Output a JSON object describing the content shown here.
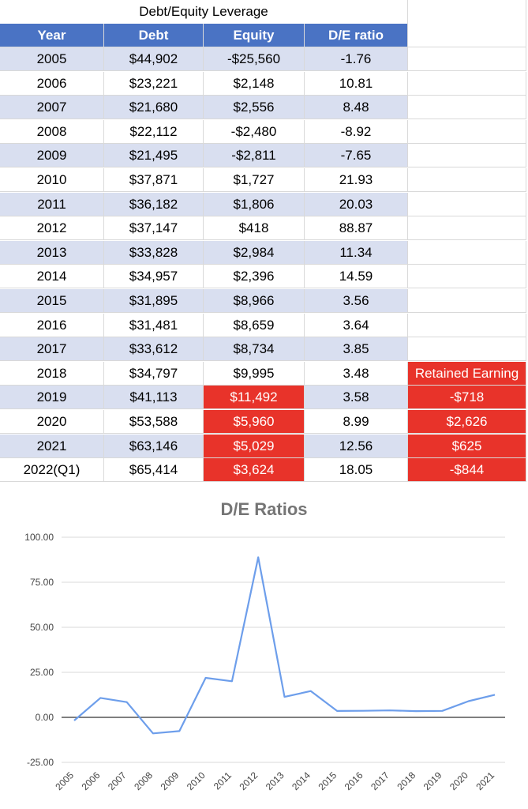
{
  "table": {
    "title": "Debt/Equity Leverage",
    "headers": [
      "Year",
      "Debt",
      "Equity",
      "D/E ratio"
    ],
    "side_header": "Retained Earning",
    "rows": [
      {
        "year": "2005",
        "debt": "$44,902",
        "equity": "-$25,560",
        "ratio": "-1.76",
        "retained": ""
      },
      {
        "year": "2006",
        "debt": "$23,221",
        "equity": "$2,148",
        "ratio": "10.81",
        "retained": ""
      },
      {
        "year": "2007",
        "debt": "$21,680",
        "equity": "$2,556",
        "ratio": "8.48",
        "retained": ""
      },
      {
        "year": "2008",
        "debt": "$22,112",
        "equity": "-$2,480",
        "ratio": "-8.92",
        "retained": ""
      },
      {
        "year": "2009",
        "debt": "$21,495",
        "equity": "-$2,811",
        "ratio": "-7.65",
        "retained": ""
      },
      {
        "year": "2010",
        "debt": "$37,871",
        "equity": "$1,727",
        "ratio": "21.93",
        "retained": ""
      },
      {
        "year": "2011",
        "debt": "$36,182",
        "equity": "$1,806",
        "ratio": "20.03",
        "retained": ""
      },
      {
        "year": "2012",
        "debt": "$37,147",
        "equity": "$418",
        "ratio": "88.87",
        "retained": ""
      },
      {
        "year": "2013",
        "debt": "$33,828",
        "equity": "$2,984",
        "ratio": "11.34",
        "retained": ""
      },
      {
        "year": "2014",
        "debt": "$34,957",
        "equity": "$2,396",
        "ratio": "14.59",
        "retained": ""
      },
      {
        "year": "2015",
        "debt": "$31,895",
        "equity": "$8,966",
        "ratio": "3.56",
        "retained": ""
      },
      {
        "year": "2016",
        "debt": "$31,481",
        "equity": "$8,659",
        "ratio": "3.64",
        "retained": ""
      },
      {
        "year": "2017",
        "debt": "$33,612",
        "equity": "$8,734",
        "ratio": "3.85",
        "retained": ""
      },
      {
        "year": "2018",
        "debt": "$34,797",
        "equity": "$9,995",
        "ratio": "3.48",
        "retained": "Retained Earning"
      },
      {
        "year": "2019",
        "debt": "$41,113",
        "equity": "$11,492",
        "ratio": "3.58",
        "retained": "-$718"
      },
      {
        "year": "2020",
        "debt": "$53,588",
        "equity": "$5,960",
        "ratio": "8.99",
        "retained": "$2,626"
      },
      {
        "year": "2021",
        "debt": "$63,146",
        "equity": "$5,029",
        "ratio": "12.56",
        "retained": "$625"
      },
      {
        "year": "2022(Q1)",
        "debt": "$65,414",
        "equity": "$3,624",
        "ratio": "18.05",
        "retained": "-$844"
      }
    ]
  },
  "colors": {
    "header_blue": "#4a73c4",
    "band_blue": "#d9dff0",
    "highlight_red": "#e8332a",
    "line_blue": "#6d9eeb",
    "title_gray": "#757575"
  },
  "chart_data": {
    "type": "line",
    "title": "D/E Ratios",
    "xlabel": "",
    "ylabel": "",
    "categories": [
      "2005",
      "2006",
      "2007",
      "2008",
      "2009",
      "2010",
      "2011",
      "2012",
      "2013",
      "2014",
      "2015",
      "2016",
      "2017",
      "2018",
      "2019",
      "2020",
      "2021"
    ],
    "series": [
      {
        "values": [
          -1.76,
          10.81,
          8.48,
          -8.92,
          -7.65,
          21.93,
          20.03,
          88.87,
          11.34,
          14.59,
          3.56,
          3.64,
          3.85,
          3.48,
          3.58,
          8.99,
          12.56
        ]
      }
    ],
    "ylim": [
      -25,
      100
    ],
    "yticks": [
      "100.00",
      "75.00",
      "50.00",
      "25.00",
      "0.00",
      "-25.00"
    ],
    "ytick_values": [
      100,
      75,
      50,
      25,
      0,
      -25
    ],
    "grid": true,
    "legend": "none"
  }
}
